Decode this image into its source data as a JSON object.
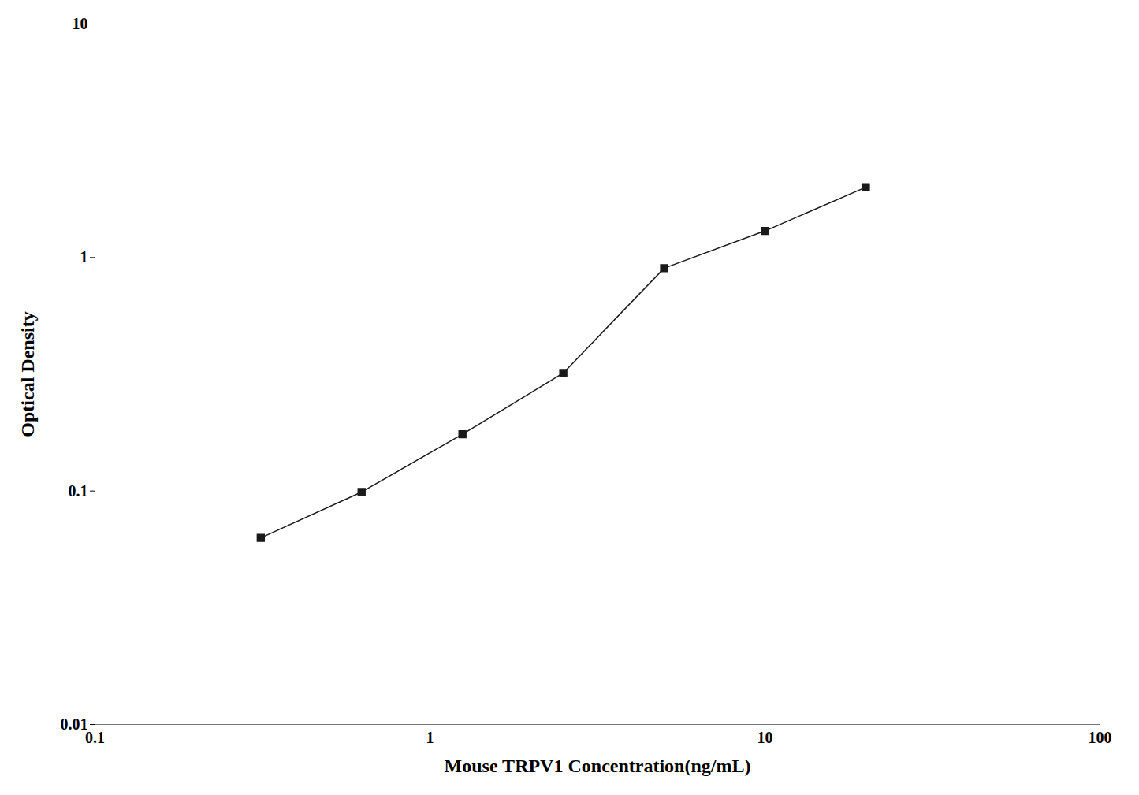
{
  "chart_data": {
    "type": "line",
    "x": [
      0.3125,
      0.625,
      1.25,
      2.5,
      5.0,
      10.0,
      20.0
    ],
    "values": [
      0.063,
      0.099,
      0.175,
      0.32,
      0.9,
      1.3,
      2.0
    ],
    "xlabel": "Mouse TRPV1 Concentration(ng/mL)",
    "ylabel": "Optical Density",
    "xlim": [
      0.1,
      100
    ],
    "ylim": [
      0.01,
      10
    ],
    "xticks": [
      0.1,
      1,
      10,
      100
    ],
    "yticks": [
      0.01,
      0.1,
      1,
      10
    ],
    "log": true,
    "grid": false,
    "color": "#1a1a1a",
    "marker": "square"
  }
}
